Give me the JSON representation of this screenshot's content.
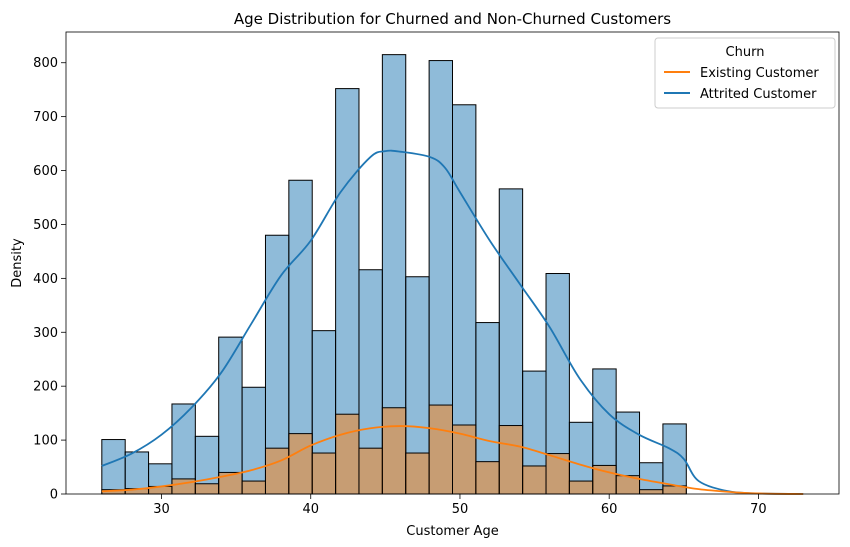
{
  "chart_data": {
    "type": "bar",
    "title": "Age Distribution for Churned and Non-Churned Customers",
    "xlabel": "Customer Age",
    "ylabel": "Density",
    "xlim": [
      23.6,
      75.4
    ],
    "ylim": [
      0,
      857
    ],
    "x_ticks": [
      30,
      40,
      50,
      60,
      70
    ],
    "y_ticks": [
      0,
      100,
      200,
      300,
      400,
      500,
      600,
      700,
      800
    ],
    "bin_edges": [
      26.0,
      27.567,
      29.133,
      30.7,
      32.267,
      33.833,
      35.4,
      36.967,
      38.533,
      40.1,
      41.667,
      43.233,
      44.8,
      46.367,
      47.933,
      49.5,
      51.067,
      52.633,
      54.2,
      55.767,
      57.333,
      58.9,
      60.467,
      62.033,
      63.6,
      65.167
    ],
    "grid": false,
    "legend": {
      "title": "Churn",
      "placement": "upper-right",
      "entries": [
        {
          "label": "Existing Customer",
          "color": "#ff7f0e"
        },
        {
          "label": "Attrited Customer",
          "color": "#1f77b4"
        }
      ]
    },
    "series": [
      {
        "name": "Existing Customer",
        "color": "#ff7f0e",
        "histogram": [
          8,
          10,
          14,
          28,
          19,
          40,
          24,
          85,
          112,
          76,
          148,
          85,
          160,
          76,
          165,
          128,
          60,
          127,
          52,
          75,
          24,
          53,
          34,
          8,
          15
        ],
        "kde": {
          "x": [
            26,
            28,
            30,
            32,
            34,
            36,
            38,
            40,
            42,
            44,
            46,
            48,
            50,
            52,
            54,
            56,
            58,
            60,
            62,
            64,
            66,
            68,
            70,
            73
          ],
          "y": [
            5,
            8,
            14,
            22,
            32,
            44,
            62,
            90,
            110,
            122,
            126,
            122,
            112,
            98,
            88,
            72,
            55,
            40,
            28,
            18,
            9,
            4,
            1,
            0
          ]
        }
      },
      {
        "name": "Attrited Customer",
        "color": "#1f77b4",
        "histogram": [
          101,
          78,
          56,
          167,
          107,
          291,
          198,
          480,
          582,
          303,
          752,
          416,
          815,
          403,
          804,
          722,
          318,
          566,
          228,
          409,
          133,
          232,
          152,
          58,
          130
        ],
        "kde": {
          "x": [
            26,
            28,
            30,
            32,
            34,
            36,
            38,
            40,
            42,
            44,
            45,
            46,
            48,
            49,
            50,
            52,
            54,
            56,
            58,
            60,
            62,
            64,
            65,
            66,
            68,
            70,
            73
          ],
          "y": [
            52,
            75,
            110,
            160,
            225,
            315,
            405,
            470,
            560,
            625,
            636,
            635,
            625,
            605,
            560,
            470,
            390,
            310,
            215,
            148,
            110,
            85,
            65,
            24,
            5,
            1,
            0
          ]
        }
      }
    ]
  }
}
